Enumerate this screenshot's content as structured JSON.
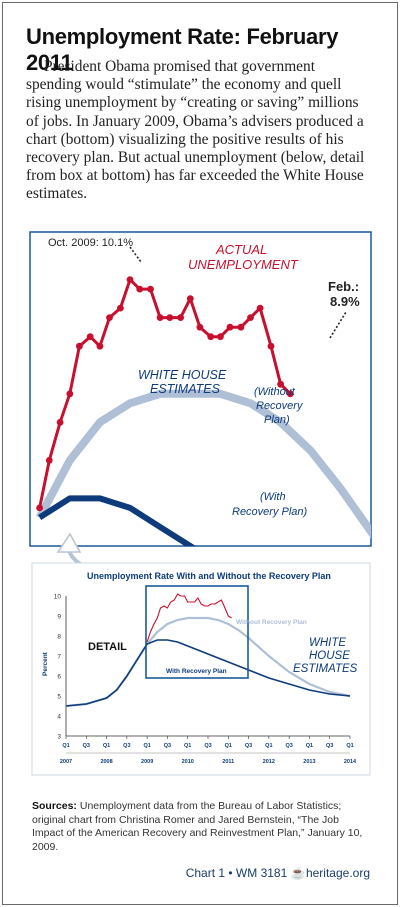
{
  "title": "Unemployment Rate: February 2011",
  "intro": "President Obama promised that government spending would “stimulate” the economy and quell rising unemployment by “creating or saving” millions of jobs. In January 2009, Obama’s advisers produced a chart (bottom) visualizing the positive results of his recovery plan. But actual unemployment (below, detail from box at bottom) has far exceeded the White House estimates.",
  "detail_chart": {
    "labels": {
      "oct": "Oct. 2009: 10.1%",
      "actual_1": "ACTUAL",
      "actual_2": "UNEMPLOYMENT",
      "feb_1": "Feb.:",
      "feb_2": "8.9%",
      "wh_1": "WHITE HOUSE",
      "wh_2": "ESTIMATES",
      "without_1": "(Without",
      "without_2": "Recovery",
      "without_3": "Plan)",
      "with_1": "(With",
      "with_2": "Recovery Plan)"
    }
  },
  "main_chart": {
    "title": "Unemployment Rate With and Without the Recovery Plan",
    "ylabel": "Percent",
    "detail_label": "DETAIL",
    "without_label": "Without Recovery Plan",
    "with_label": "With Recovery Plan",
    "wh_1": "WHITE",
    "wh_2": "HOUSE",
    "wh_3": "ESTIMATES",
    "yticks": [
      "3",
      "4",
      "5",
      "6",
      "7",
      "8",
      "9",
      "10"
    ],
    "xticks": [
      "Q1",
      "Q3",
      "Q1",
      "Q3",
      "Q1",
      "Q3",
      "Q1",
      "Q3",
      "Q1",
      "Q3",
      "Q1",
      "Q3",
      "Q1",
      "Q3",
      "Q1"
    ],
    "years": [
      "2007",
      "2008",
      "2009",
      "2010",
      "2011",
      "2012",
      "2013",
      "2014"
    ]
  },
  "chart_data": {
    "type": "line",
    "title": "Unemployment Rate With and Without the Recovery Plan",
    "ylabel": "Percent",
    "ylim": [
      3,
      10
    ],
    "x_unit": "quarter",
    "xlim": [
      2007.0,
      2014.0
    ],
    "colors": {
      "actual": "#c8102e",
      "without": "#aebfd6",
      "with": "#0d3b7c"
    },
    "series": [
      {
        "name": "Without Recovery Plan",
        "x": [
          2007.0,
          2007.5,
          2008.0,
          2008.25,
          2008.5,
          2008.75,
          2009.0,
          2009.25,
          2009.5,
          2009.75,
          2010.0,
          2010.25,
          2010.5,
          2010.75,
          2011.0,
          2011.25,
          2011.5,
          2012.0,
          2012.5,
          2013.0,
          2013.5,
          2014.0
        ],
        "y": [
          4.5,
          4.6,
          4.9,
          5.3,
          6.0,
          6.8,
          7.6,
          8.2,
          8.6,
          8.8,
          8.9,
          8.9,
          8.9,
          8.8,
          8.6,
          8.3,
          7.9,
          7.0,
          6.2,
          5.6,
          5.2,
          5.0
        ]
      },
      {
        "name": "With Recovery Plan",
        "x": [
          2007.0,
          2007.5,
          2008.0,
          2008.25,
          2008.5,
          2008.75,
          2009.0,
          2009.25,
          2009.5,
          2009.75,
          2010.0,
          2010.25,
          2010.5,
          2010.75,
          2011.0,
          2011.25,
          2011.5,
          2012.0,
          2012.5,
          2013.0,
          2013.5,
          2014.0
        ],
        "y": [
          4.5,
          4.6,
          4.9,
          5.3,
          6.0,
          6.8,
          7.6,
          7.8,
          7.8,
          7.7,
          7.5,
          7.3,
          7.1,
          6.9,
          6.7,
          6.5,
          6.3,
          5.9,
          5.6,
          5.3,
          5.1,
          5.0
        ]
      },
      {
        "name": "Actual Unemployment",
        "x": [
          2009.0,
          2009.08,
          2009.17,
          2009.25,
          2009.33,
          2009.42,
          2009.5,
          2009.58,
          2009.67,
          2009.75,
          2009.83,
          2009.92,
          2010.0,
          2010.08,
          2010.17,
          2010.25,
          2010.33,
          2010.42,
          2010.5,
          2010.58,
          2010.67,
          2010.75,
          2010.83,
          2010.92,
          2011.0,
          2011.08
        ],
        "y": [
          7.7,
          8.2,
          8.6,
          8.9,
          9.4,
          9.5,
          9.4,
          9.7,
          9.8,
          10.1,
          10.0,
          10.0,
          9.7,
          9.7,
          9.7,
          9.9,
          9.6,
          9.5,
          9.5,
          9.6,
          9.6,
          9.7,
          9.8,
          9.4,
          9.0,
          8.9
        ]
      }
    ],
    "annotations": [
      "Oct. 2009: 10.1%",
      "Feb.: 8.9%"
    ]
  },
  "sources": {
    "label": "Sources:",
    "text": "Unemployment data from the Bureau of Labor Statistics; original chart from Christina Romer and Jared Bernstein, “The Job Impact of the American Recovery and Reinvestment Plan,” January 10, 2009."
  },
  "footer": {
    "chart": "Chart 1 • WM 3181",
    "bell_icon": "liberty-bell-icon",
    "site": "heritage.org"
  }
}
